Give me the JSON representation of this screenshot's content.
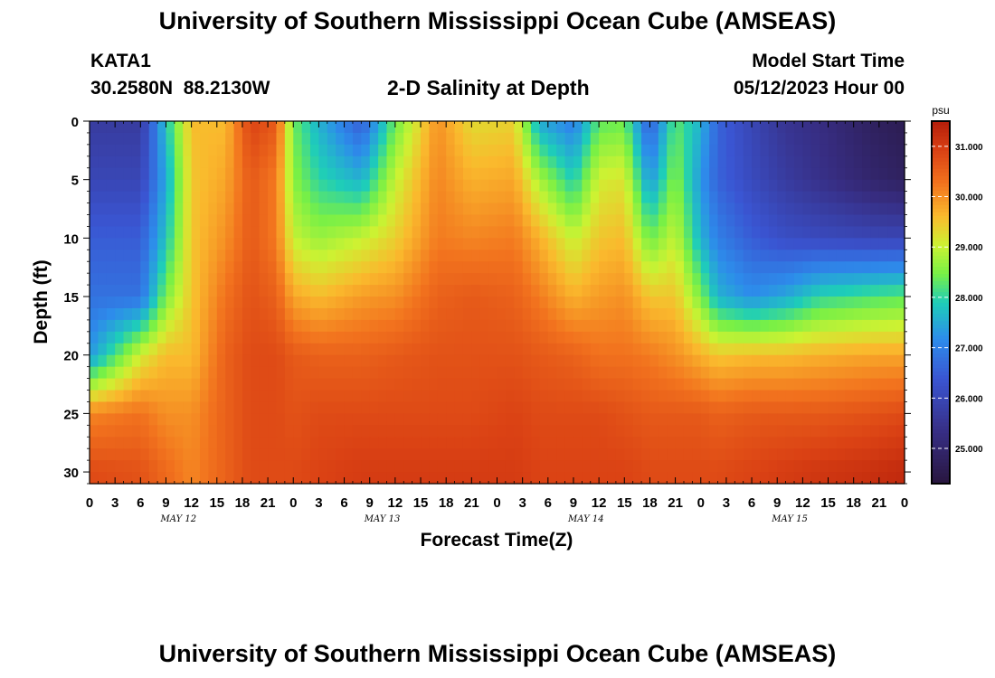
{
  "page": {
    "title": "University of Southern Mississippi Ocean Cube (AMSEAS)",
    "title_repeat": "University of Southern Mississippi Ocean Cube (AMSEAS)",
    "station": "KATA1",
    "coords": "30.2580N  88.2130W",
    "subtitle": "2-D Salinity at Depth",
    "model_start_label": "Model Start Time",
    "model_start_value": "05/12/2023 Hour 00"
  },
  "chart_data": {
    "type": "heatmap",
    "title": "2-D Salinity at Depth",
    "xlabel": "Forecast Time(Z)",
    "ylabel": "Depth (ft)",
    "x_tick_labels": [
      "0",
      "3",
      "6",
      "9",
      "12",
      "15",
      "18",
      "21",
      "0",
      "3",
      "6",
      "9",
      "12",
      "15",
      "18",
      "21",
      "0",
      "3",
      "6",
      "9",
      "12",
      "15",
      "18",
      "21",
      "0",
      "3",
      "6",
      "9",
      "12",
      "15",
      "18",
      "21",
      "0"
    ],
    "x_range_hours": [
      0,
      96
    ],
    "x_tick_step_hours": 3,
    "date_labels": [
      {
        "label": "MAY 12",
        "hour": 10.5
      },
      {
        "label": "MAY 13",
        "hour": 34.5
      },
      {
        "label": "MAY 14",
        "hour": 58.5
      },
      {
        "label": "MAY 15",
        "hour": 82.5
      }
    ],
    "y_tick_labels": [
      "0",
      "5",
      "10",
      "15",
      "20",
      "25",
      "30"
    ],
    "y_ticks": [
      0,
      5,
      10,
      15,
      20,
      25,
      30
    ],
    "ylim": [
      0,
      31
    ],
    "y_inverted": true,
    "colorbar": {
      "unit": "psu",
      "range": [
        24.3,
        31.5
      ],
      "tick_labels": [
        "31.000",
        "30.000",
        "29.000",
        "28.000",
        "27.000",
        "26.000",
        "25.000"
      ],
      "ticks": [
        31,
        30,
        29,
        28,
        27,
        26,
        25
      ]
    },
    "depths": [
      0,
      5,
      10,
      15,
      20,
      25,
      30
    ],
    "times": [
      0,
      6,
      9,
      12,
      16,
      19,
      22,
      24,
      27,
      32,
      36,
      41,
      45,
      50,
      53,
      57,
      60,
      63,
      66,
      69,
      72,
      74,
      78,
      82,
      86,
      92,
      96
    ],
    "values": [
      [
        25.7,
        25.7,
        27.8,
        29.6,
        29.6,
        30.9,
        30.6,
        28.4,
        27.6,
        26.5,
        28.4,
        30.0,
        29.3,
        29.4,
        27.5,
        27.0,
        28.3,
        28.4,
        26.5,
        28.3,
        27.6,
        26.6,
        26.0,
        25.5,
        25.3,
        24.8,
        24.6
      ],
      [
        26.0,
        26.0,
        27.5,
        29.5,
        29.8,
        30.6,
        30.2,
        28.6,
        28.0,
        27.6,
        29.0,
        30.1,
        29.7,
        29.8,
        28.8,
        27.9,
        29.1,
        29.2,
        27.3,
        28.6,
        27.3,
        26.6,
        26.1,
        25.7,
        25.4,
        25.0,
        24.8
      ],
      [
        26.5,
        26.5,
        27.8,
        29.5,
        30.0,
        30.6,
        30.2,
        29.0,
        28.7,
        29.0,
        29.4,
        30.2,
        30.1,
        30.2,
        29.7,
        29.0,
        29.5,
        29.6,
        28.4,
        29.0,
        27.6,
        27.0,
        26.5,
        26.2,
        26.1,
        26.0,
        26.0
      ],
      [
        26.8,
        26.8,
        28.5,
        29.5,
        30.3,
        30.7,
        30.5,
        29.8,
        29.6,
        29.9,
        30.0,
        30.5,
        30.6,
        30.5,
        30.2,
        29.7,
        29.9,
        30.0,
        29.5,
        29.5,
        28.5,
        27.6,
        27.2,
        27.5,
        28.0,
        28.2,
        28.3
      ],
      [
        27.3,
        29.1,
        29.6,
        29.6,
        30.5,
        30.8,
        30.8,
        30.6,
        30.5,
        30.5,
        30.6,
        30.7,
        30.7,
        30.7,
        30.6,
        30.5,
        30.3,
        30.3,
        30.2,
        30.0,
        29.7,
        29.5,
        29.6,
        29.6,
        29.7,
        29.8,
        29.8
      ],
      [
        30.1,
        30.3,
        30.0,
        30.0,
        30.5,
        30.8,
        30.8,
        30.7,
        30.8,
        30.8,
        30.8,
        30.8,
        30.8,
        30.9,
        30.8,
        30.8,
        30.8,
        30.7,
        30.6,
        30.6,
        30.6,
        30.5,
        30.6,
        30.6,
        30.6,
        30.7,
        30.8
      ],
      [
        30.8,
        30.7,
        30.4,
        30.1,
        30.5,
        30.8,
        30.8,
        30.8,
        30.9,
        31.0,
        31.0,
        31.0,
        31.0,
        31.0,
        30.9,
        30.9,
        30.9,
        30.9,
        30.8,
        30.8,
        30.8,
        30.8,
        30.9,
        31.0,
        31.1,
        31.2,
        31.3
      ]
    ]
  }
}
